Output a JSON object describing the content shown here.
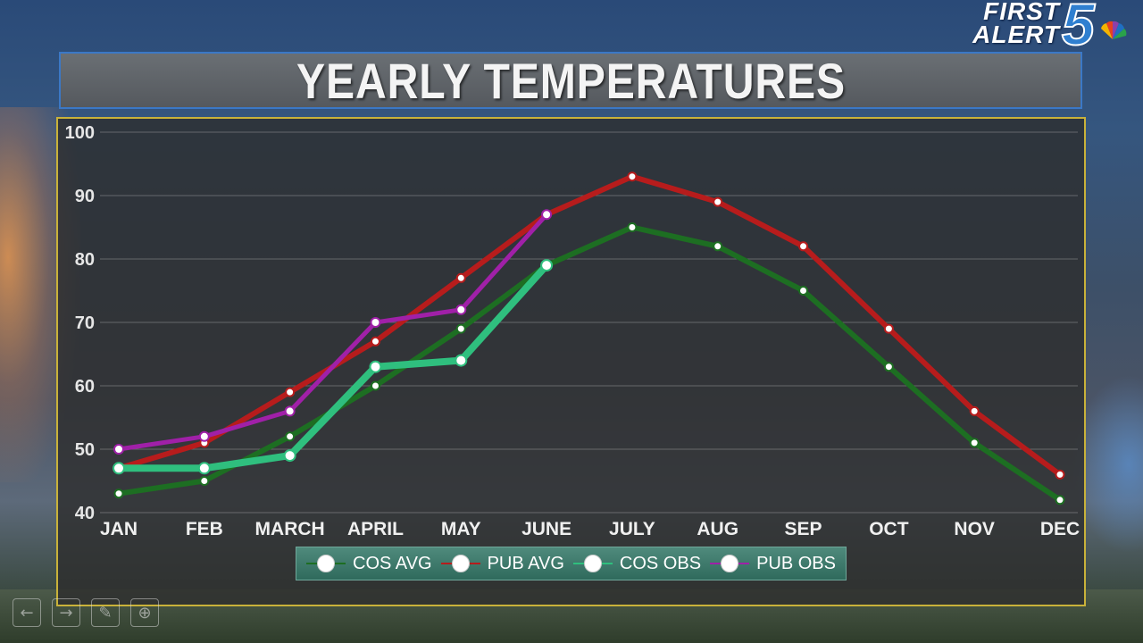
{
  "branding": {
    "line1": "FIRST",
    "line2": "ALERT",
    "number": "5"
  },
  "title": "YEARLY TEMPERATURES",
  "colors": {
    "cos_avg": "#1d6e22",
    "pub_avg": "#b71c1c",
    "cos_obs": "#2fbf7e",
    "pub_obs": "#a020a8",
    "panel_border": "#c9b23a",
    "title_border": "#3b78c6"
  },
  "chart_data": {
    "type": "line",
    "title": "YEARLY TEMPERATURES",
    "xlabel": "",
    "ylabel": "",
    "ylim": [
      40,
      100
    ],
    "yticks": [
      40,
      50,
      60,
      70,
      80,
      90,
      100
    ],
    "grid": true,
    "legend_position": "bottom",
    "categories": [
      "JAN",
      "FEB",
      "MARCH",
      "APRIL",
      "MAY",
      "JUNE",
      "JULY",
      "AUG",
      "SEP",
      "OCT",
      "NOV",
      "DEC"
    ],
    "series": [
      {
        "name": "COS AVG",
        "key": "cos_avg",
        "values": [
          43,
          45,
          52,
          60,
          69,
          79,
          85,
          82,
          75,
          63,
          51,
          42
        ]
      },
      {
        "name": "PUB AVG",
        "key": "pub_avg",
        "values": [
          47,
          51,
          59,
          67,
          77,
          87,
          93,
          89,
          82,
          69,
          56,
          46
        ]
      },
      {
        "name": "COS OBS",
        "key": "cos_obs",
        "values": [
          47,
          47,
          49,
          63,
          64,
          79,
          null,
          null,
          null,
          null,
          null,
          null
        ]
      },
      {
        "name": "PUB OBS",
        "key": "pub_obs",
        "values": [
          50,
          52,
          56,
          70,
          72,
          87,
          null,
          null,
          null,
          null,
          null,
          null
        ]
      }
    ]
  },
  "legend": [
    {
      "label": "COS AVG",
      "key": "cos_avg"
    },
    {
      "label": "PUB AVG",
      "key": "pub_avg"
    },
    {
      "label": "COS OBS",
      "key": "cos_obs"
    },
    {
      "label": "PUB OBS",
      "key": "pub_obs"
    }
  ],
  "controls": [
    {
      "icon": "back-arrow-icon",
      "glyph": "←"
    },
    {
      "icon": "forward-arrow-icon",
      "glyph": "→"
    },
    {
      "icon": "pen-icon",
      "glyph": "✎"
    },
    {
      "icon": "zoom-icon",
      "glyph": "⊕"
    }
  ]
}
